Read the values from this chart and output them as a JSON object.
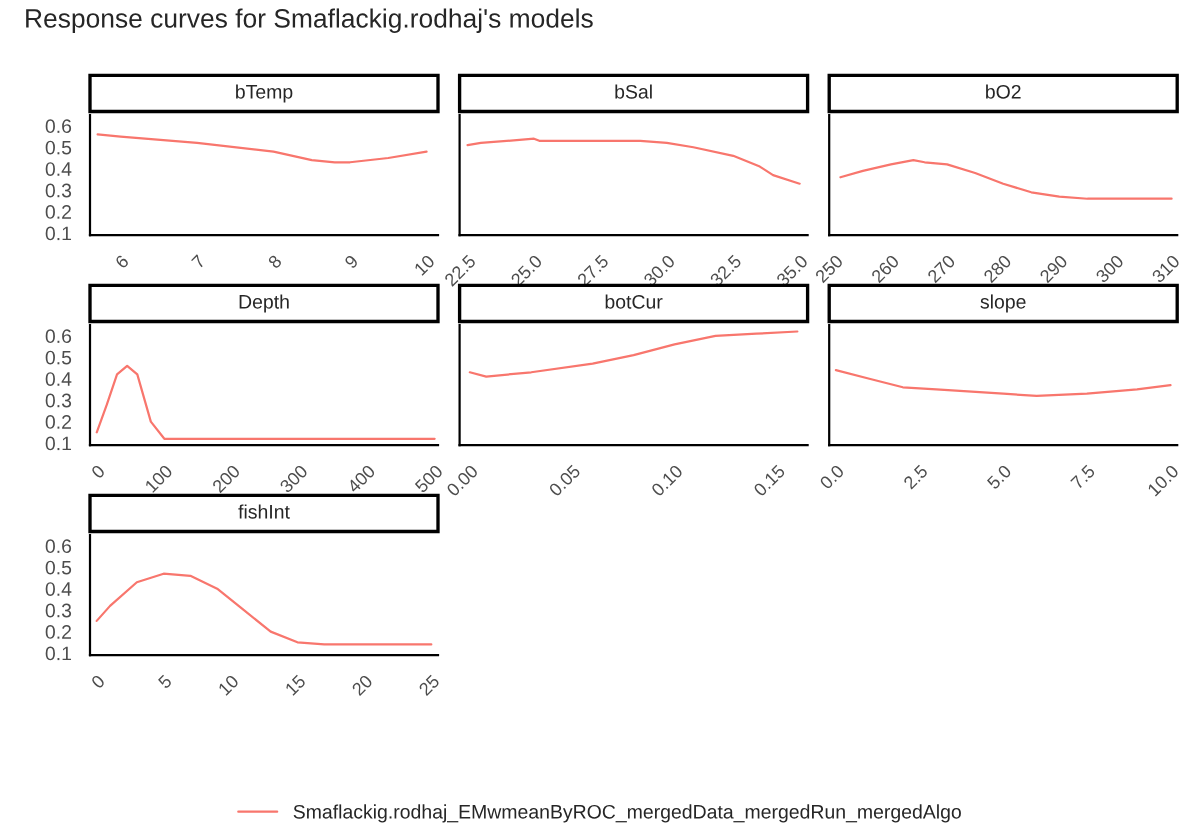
{
  "chart_data": [
    {
      "type": "line",
      "title": "Response curves for Smaflackig.rodhaj's models",
      "subtitle": "bTemp",
      "legend": "bottom",
      "xlim": [
        5.6,
        10.15
      ],
      "xticks": [
        6,
        7,
        8,
        9,
        10
      ],
      "ylim": [
        0.09,
        0.65
      ],
      "yticks": [
        0.1,
        0.2,
        0.3,
        0.4,
        0.5,
        0.6
      ],
      "series": [
        {
          "name": "Smaflackig.rodhaj_EMwmeanByROC_mergedData_mergedRun_mergedAlgo",
          "color": "#f8766d",
          "x": [
            5.7,
            6,
            7,
            8,
            8.5,
            8.8,
            9,
            9.5,
            10
          ],
          "values": [
            0.56,
            0.55,
            0.52,
            0.48,
            0.44,
            0.43,
            0.43,
            0.45,
            0.48
          ]
        }
      ]
    },
    {
      "type": "line",
      "subtitle": "bSal",
      "xlim": [
        22.2,
        35.3
      ],
      "xticks": [
        {
          "value": 22.5,
          "label": "22.5"
        },
        {
          "value": 25,
          "label": "25.0"
        },
        {
          "value": 27.5,
          "label": "27.5"
        },
        {
          "value": 30,
          "label": "30.0"
        },
        {
          "value": 32.5,
          "label": "32.5"
        },
        {
          "value": 35,
          "label": "35.0"
        }
      ],
      "ylim": [
        0.09,
        0.65
      ],
      "yticks": [
        0.1,
        0.2,
        0.3,
        0.4,
        0.5,
        0.6
      ],
      "tick_labels": "x",
      "series": [
        {
          "color": "#f8766d",
          "x": [
            22.5,
            23,
            25,
            25.2,
            27.5,
            29,
            30,
            31,
            32.5,
            33.5,
            34,
            35
          ],
          "values": [
            0.51,
            0.52,
            0.54,
            0.53,
            0.53,
            0.53,
            0.52,
            0.5,
            0.46,
            0.41,
            0.37,
            0.33
          ]
        }
      ]
    },
    {
      "type": "line",
      "subtitle": "bO2",
      "xlim": [
        249,
        311
      ],
      "xticks": [
        250,
        260,
        270,
        280,
        290,
        300,
        310
      ],
      "ylim": [
        0.09,
        0.65
      ],
      "yticks": [
        0.1,
        0.2,
        0.3,
        0.4,
        0.5,
        0.6
      ],
      "tick_labels": "x",
      "series": [
        {
          "color": "#f8766d",
          "x": [
            251,
            255,
            260,
            264,
            266,
            270,
            275,
            280,
            285,
            290,
            295,
            310
          ],
          "values": [
            0.36,
            0.39,
            0.42,
            0.44,
            0.43,
            0.42,
            0.38,
            0.33,
            0.29,
            0.27,
            0.26,
            0.26
          ]
        }
      ]
    },
    {
      "type": "line",
      "subtitle": "Depth",
      "xlim": [
        -10,
        505
      ],
      "xticks": [
        0,
        100,
        200,
        300,
        400,
        500
      ],
      "ylim": [
        0.09,
        0.65
      ],
      "yticks": [
        0.1,
        0.2,
        0.3,
        0.4,
        0.5,
        0.6
      ],
      "series": [
        {
          "color": "#f8766d",
          "x": [
            0,
            15,
            30,
            45,
            60,
            80,
            100,
            150,
            500
          ],
          "values": [
            0.15,
            0.28,
            0.42,
            0.46,
            0.42,
            0.2,
            0.12,
            0.12,
            0.12
          ]
        }
      ]
    },
    {
      "type": "line",
      "subtitle": "botCur",
      "xlim": [
        -0.005,
        0.165
      ],
      "xticks": [
        {
          "value": 0,
          "label": "0.00"
        },
        {
          "value": 0.05,
          "label": "0.05"
        },
        {
          "value": 0.1,
          "label": "0.10"
        },
        {
          "value": 0.15,
          "label": "0.15"
        }
      ],
      "ylim": [
        0.09,
        0.65
      ],
      "yticks": [
        0.1,
        0.2,
        0.3,
        0.4,
        0.5,
        0.6
      ],
      "tick_labels": "x",
      "series": [
        {
          "color": "#f8766d",
          "x": [
            0,
            0.008,
            0.03,
            0.06,
            0.08,
            0.1,
            0.12,
            0.14,
            0.16
          ],
          "values": [
            0.43,
            0.41,
            0.43,
            0.47,
            0.51,
            0.56,
            0.6,
            0.61,
            0.62
          ]
        }
      ]
    },
    {
      "type": "line",
      "subtitle": "slope",
      "xlim": [
        -0.2,
        10.2
      ],
      "xticks": [
        {
          "value": 0,
          "label": "0.0"
        },
        {
          "value": 2.5,
          "label": "2.5"
        },
        {
          "value": 5,
          "label": "5.0"
        },
        {
          "value": 7.5,
          "label": "7.5"
        },
        {
          "value": 10,
          "label": "10.0"
        }
      ],
      "ylim": [
        0.09,
        0.65
      ],
      "yticks": [
        0.1,
        0.2,
        0.3,
        0.4,
        0.5,
        0.6
      ],
      "tick_labels": "x",
      "series": [
        {
          "color": "#f8766d",
          "x": [
            0,
            1,
            2,
            3,
            5,
            6,
            7.5,
            9,
            10
          ],
          "values": [
            0.44,
            0.4,
            0.36,
            0.35,
            0.33,
            0.32,
            0.33,
            0.35,
            0.37
          ]
        }
      ]
    },
    {
      "type": "line",
      "subtitle": "fishInt",
      "xlim": [
        -0.5,
        25.5
      ],
      "xticks": [
        0,
        5,
        10,
        15,
        20,
        25
      ],
      "ylim": [
        0.09,
        0.65
      ],
      "yticks": [
        0.1,
        0.2,
        0.3,
        0.4,
        0.5,
        0.6
      ],
      "series": [
        {
          "color": "#f8766d",
          "x": [
            0,
            1,
            3,
            5,
            7,
            9,
            11,
            13,
            15,
            17,
            25
          ],
          "values": [
            0.25,
            0.32,
            0.43,
            0.47,
            0.46,
            0.4,
            0.3,
            0.2,
            0.15,
            0.14,
            0.14
          ]
        }
      ]
    }
  ]
}
